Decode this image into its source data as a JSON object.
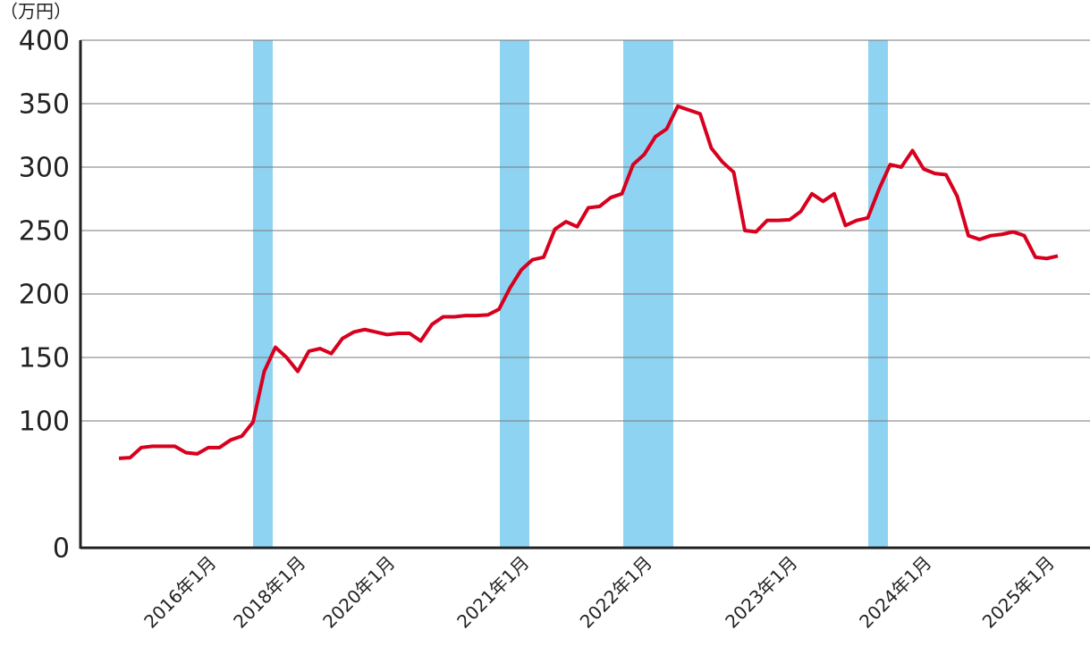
{
  "chart_data": {
    "type": "line",
    "y_unit": "（万円）",
    "categories": [
      null,
      null,
      null,
      null,
      null,
      null,
      null,
      null,
      "2016年1月",
      null,
      null,
      null,
      null,
      null,
      null,
      null,
      "2018年1月",
      null,
      null,
      null,
      null,
      null,
      null,
      null,
      "2020年1月",
      null,
      null,
      null,
      null,
      null,
      null,
      null,
      null,
      null,
      null,
      null,
      "2021年1月",
      null,
      null,
      null,
      null,
      null,
      null,
      null,
      null,
      null,
      null,
      "2022年1月",
      null,
      null,
      null,
      null,
      null,
      null,
      null,
      null,
      null,
      null,
      null,
      null,
      "2023年1月",
      null,
      null,
      null,
      null,
      null,
      null,
      null,
      null,
      null,
      null,
      null,
      "2024年1月",
      null,
      null,
      null,
      null,
      null,
      null,
      null,
      null,
      null,
      null,
      "2025年1月",
      null
    ],
    "values": [
      70.5,
      71,
      79,
      80,
      80,
      80,
      75,
      74,
      79,
      79,
      85,
      88,
      99,
      139,
      158,
      150,
      139,
      155,
      157,
      153,
      165,
      170,
      172,
      170,
      168,
      169,
      169,
      163,
      176,
      182,
      182,
      183,
      183,
      183.5,
      188,
      205,
      219,
      227,
      229,
      251,
      257,
      253,
      268,
      269,
      276,
      279,
      302,
      310,
      324,
      330,
      348,
      345,
      342,
      315,
      304,
      296,
      250,
      249,
      258,
      258,
      258.5,
      265,
      279,
      273,
      279,
      254,
      258,
      260,
      282.5,
      302,
      300,
      313,
      298.5,
      295,
      294,
      277,
      246,
      243,
      246,
      247,
      249,
      246,
      229,
      228,
      230
    ],
    "color": "#d7001e",
    "ylim": [
      0,
      400
    ],
    "yticks": [
      0,
      100,
      150,
      200,
      250,
      300,
      350,
      400
    ],
    "grid": true
  }
}
